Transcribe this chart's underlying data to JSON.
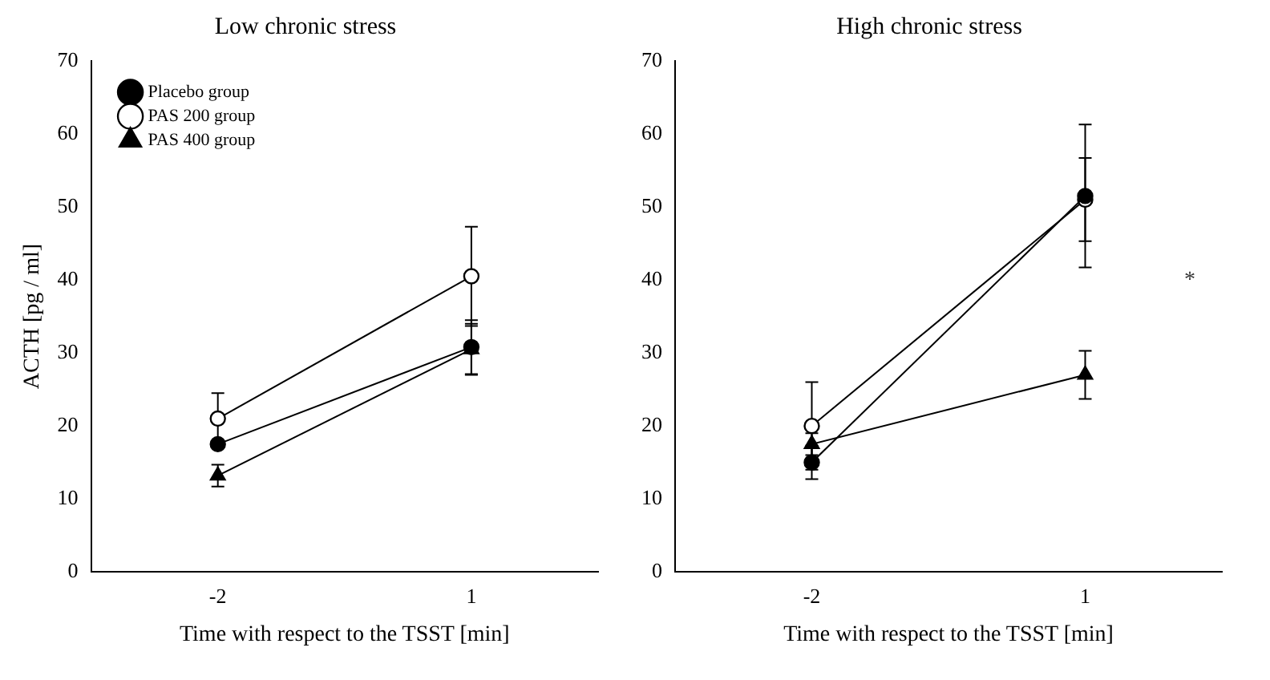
{
  "chart_data": [
    {
      "type": "line",
      "title": "Low chronic stress",
      "xlabel": "Time with respect to the TSST [min]",
      "ylabel": "ACTH [pg / ml]",
      "categories": [
        "-2",
        "1"
      ],
      "ylim": [
        0,
        70
      ],
      "yticks": [
        0,
        10,
        20,
        30,
        40,
        50,
        60,
        70
      ],
      "grid": false,
      "legend": "top left",
      "series": [
        {
          "name": "Placebo group",
          "color": "#000000",
          "marker": "circle",
          "values": [
            17.5,
            30.8
          ],
          "errors": [
            null,
            3.7
          ]
        },
        {
          "name": "PAS 200 group",
          "color": "#000000",
          "colors": [
            "#ffffff",
            "#ffffff"
          ],
          "marker": "circle",
          "values": [
            21,
            40.5
          ],
          "errors": [
            3.5,
            6.8
          ]
        },
        {
          "name": "PAS 400 group",
          "color": "#000000",
          "marker": "triangle",
          "values": [
            13.2,
            30.5
          ],
          "errors": [
            1.5,
            3.5
          ]
        }
      ]
    },
    {
      "type": "line",
      "title": "High chronic stress",
      "xlabel": "Time with respect to the TSST [min]",
      "categories": [
        "-2",
        "1"
      ],
      "ylim": [
        0,
        70
      ],
      "yticks": [
        0,
        10,
        20,
        30,
        40,
        50,
        60,
        70
      ],
      "grid": false,
      "legend": false,
      "annotations": [
        "*"
      ],
      "series": [
        {
          "color": "#000000",
          "marker": "circle",
          "values": [
            15,
            51.5
          ],
          "errors": [
            2.3,
            9.8
          ]
        },
        {
          "color": "#000000",
          "colors": [
            "#ffffff",
            "#ffffff"
          ],
          "marker": "circle",
          "values": [
            20,
            51
          ],
          "errors": [
            6,
            5.7
          ]
        },
        {
          "color": "#000000",
          "marker": "triangle",
          "values": [
            17.5,
            27
          ],
          "errors": [
            1.5,
            3.3
          ]
        }
      ]
    }
  ]
}
